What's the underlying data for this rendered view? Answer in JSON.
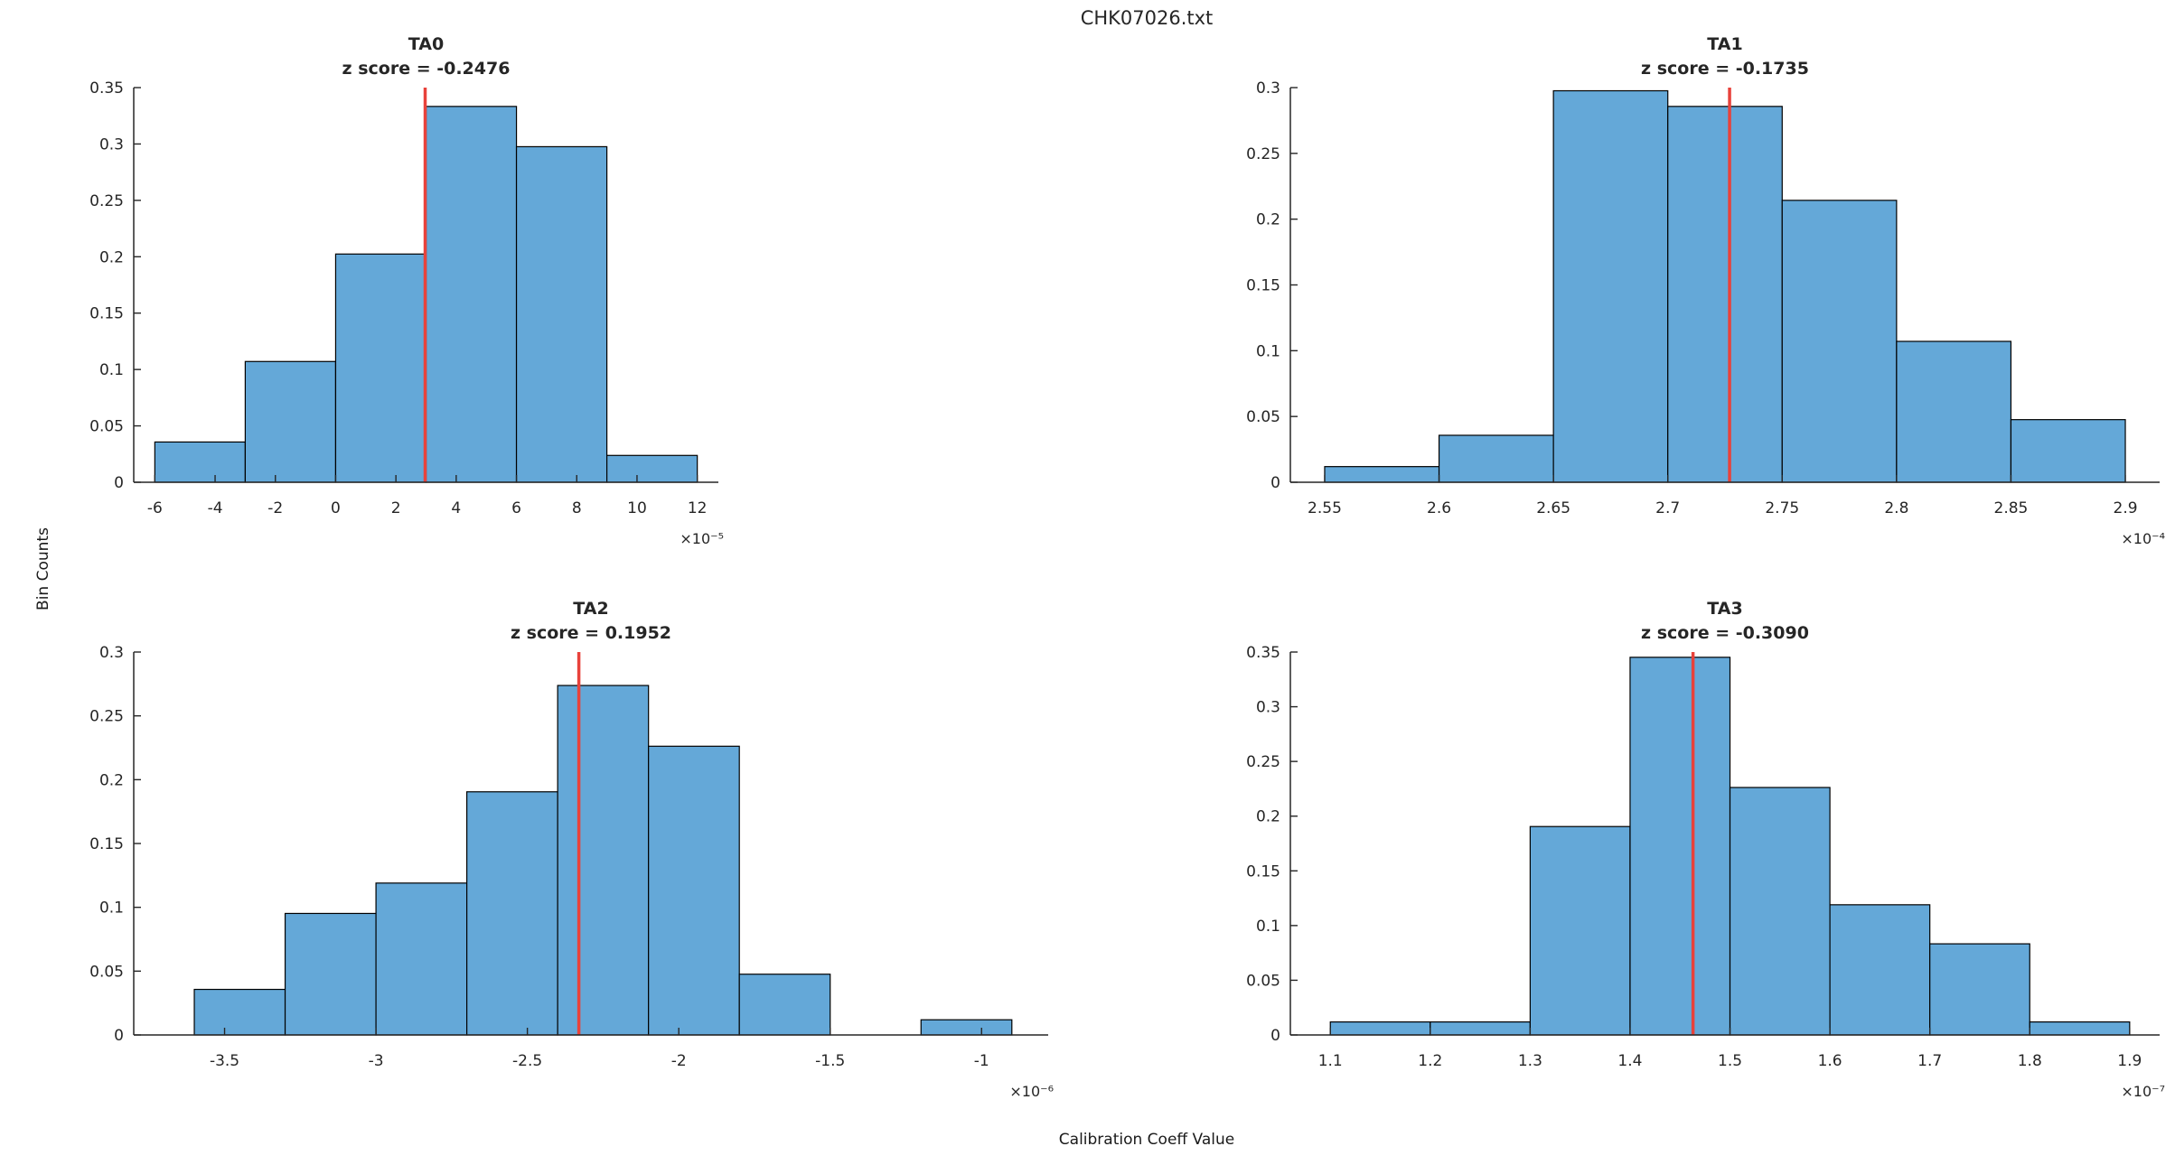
{
  "figure_title": "CHK07026.txt",
  "axis_labels": {
    "y": "Bin Counts",
    "x": "Calibration Coeff Value"
  },
  "colors": {
    "bar_fill": "#64a8d8",
    "bar_edge": "#000000",
    "z_line": "#e8423b",
    "axis": "#262626",
    "text": "#262626"
  },
  "chart_data": [
    {
      "type": "bar",
      "title": "TA0",
      "subtitle": "z score = -0.2476",
      "z_score": -0.2476,
      "z_line_x": 2.97,
      "x_scale_label": "×10⁻⁵",
      "bin_edges": [
        -6,
        -3,
        0,
        3,
        6,
        9,
        12
      ],
      "values": [
        0.0357,
        0.1071,
        0.2024,
        0.3333,
        0.2976,
        0.0238
      ],
      "xticks": [
        -6,
        -4,
        -2,
        0,
        2,
        4,
        6,
        8,
        10,
        12
      ],
      "yticks": [
        0,
        0.05,
        0.1,
        0.15,
        0.2,
        0.25,
        0.3,
        0.35
      ],
      "xlim": [
        -6.7,
        12.7
      ],
      "ylim": [
        0,
        0.35
      ]
    },
    {
      "type": "bar",
      "title": "TA1",
      "subtitle": "z score = -0.1735",
      "z_score": -0.1735,
      "z_line_x": 2.727,
      "x_scale_label": "×10⁻⁴",
      "bin_edges": [
        2.55,
        2.6,
        2.65,
        2.7,
        2.75,
        2.8,
        2.85,
        2.9
      ],
      "values": [
        0.0119,
        0.0357,
        0.2976,
        0.2857,
        0.2143,
        0.1071,
        0.0476
      ],
      "xticks": [
        2.55,
        2.6,
        2.65,
        2.7,
        2.75,
        2.8,
        2.85,
        2.9
      ],
      "yticks": [
        0,
        0.05,
        0.1,
        0.15,
        0.2,
        0.25,
        0.3
      ],
      "xlim": [
        2.535,
        2.915
      ],
      "ylim": [
        0,
        0.3
      ]
    },
    {
      "type": "bar",
      "title": "TA2",
      "subtitle": "z score = 0.1952",
      "z_score": 0.1952,
      "z_line_x": -2.33,
      "x_scale_label": "×10⁻⁶",
      "bin_edges": [
        -3.6,
        -3.3,
        -3.0,
        -2.7,
        -2.4,
        -2.1,
        -1.8,
        -1.5,
        -1.2,
        -0.9
      ],
      "values": [
        0.0357,
        0.0952,
        0.119,
        0.1905,
        0.2738,
        0.2262,
        0.0476,
        0,
        0.0119
      ],
      "xticks": [
        -3.5,
        -3,
        -2.5,
        -2,
        -1.5,
        -1
      ],
      "yticks": [
        0,
        0.05,
        0.1,
        0.15,
        0.2,
        0.25,
        0.3
      ],
      "xlim": [
        -3.8,
        -0.78
      ],
      "ylim": [
        0,
        0.3
      ]
    },
    {
      "type": "bar",
      "title": "TA3",
      "subtitle": "z score = -0.3090",
      "z_score": -0.309,
      "z_line_x": 1.463,
      "x_scale_label": "×10⁻⁷",
      "bin_edges": [
        1.1,
        1.2,
        1.3,
        1.4,
        1.5,
        1.6,
        1.7,
        1.8,
        1.9
      ],
      "values": [
        0.0119,
        0.0119,
        0.1905,
        0.3452,
        0.2262,
        0.119,
        0.0833,
        0.0119
      ],
      "xticks": [
        1.1,
        1.2,
        1.3,
        1.4,
        1.5,
        1.6,
        1.7,
        1.8,
        1.9
      ],
      "yticks": [
        0,
        0.05,
        0.1,
        0.15,
        0.2,
        0.25,
        0.3,
        0.35
      ],
      "xlim": [
        1.06,
        1.93
      ],
      "ylim": [
        0,
        0.35
      ]
    }
  ]
}
